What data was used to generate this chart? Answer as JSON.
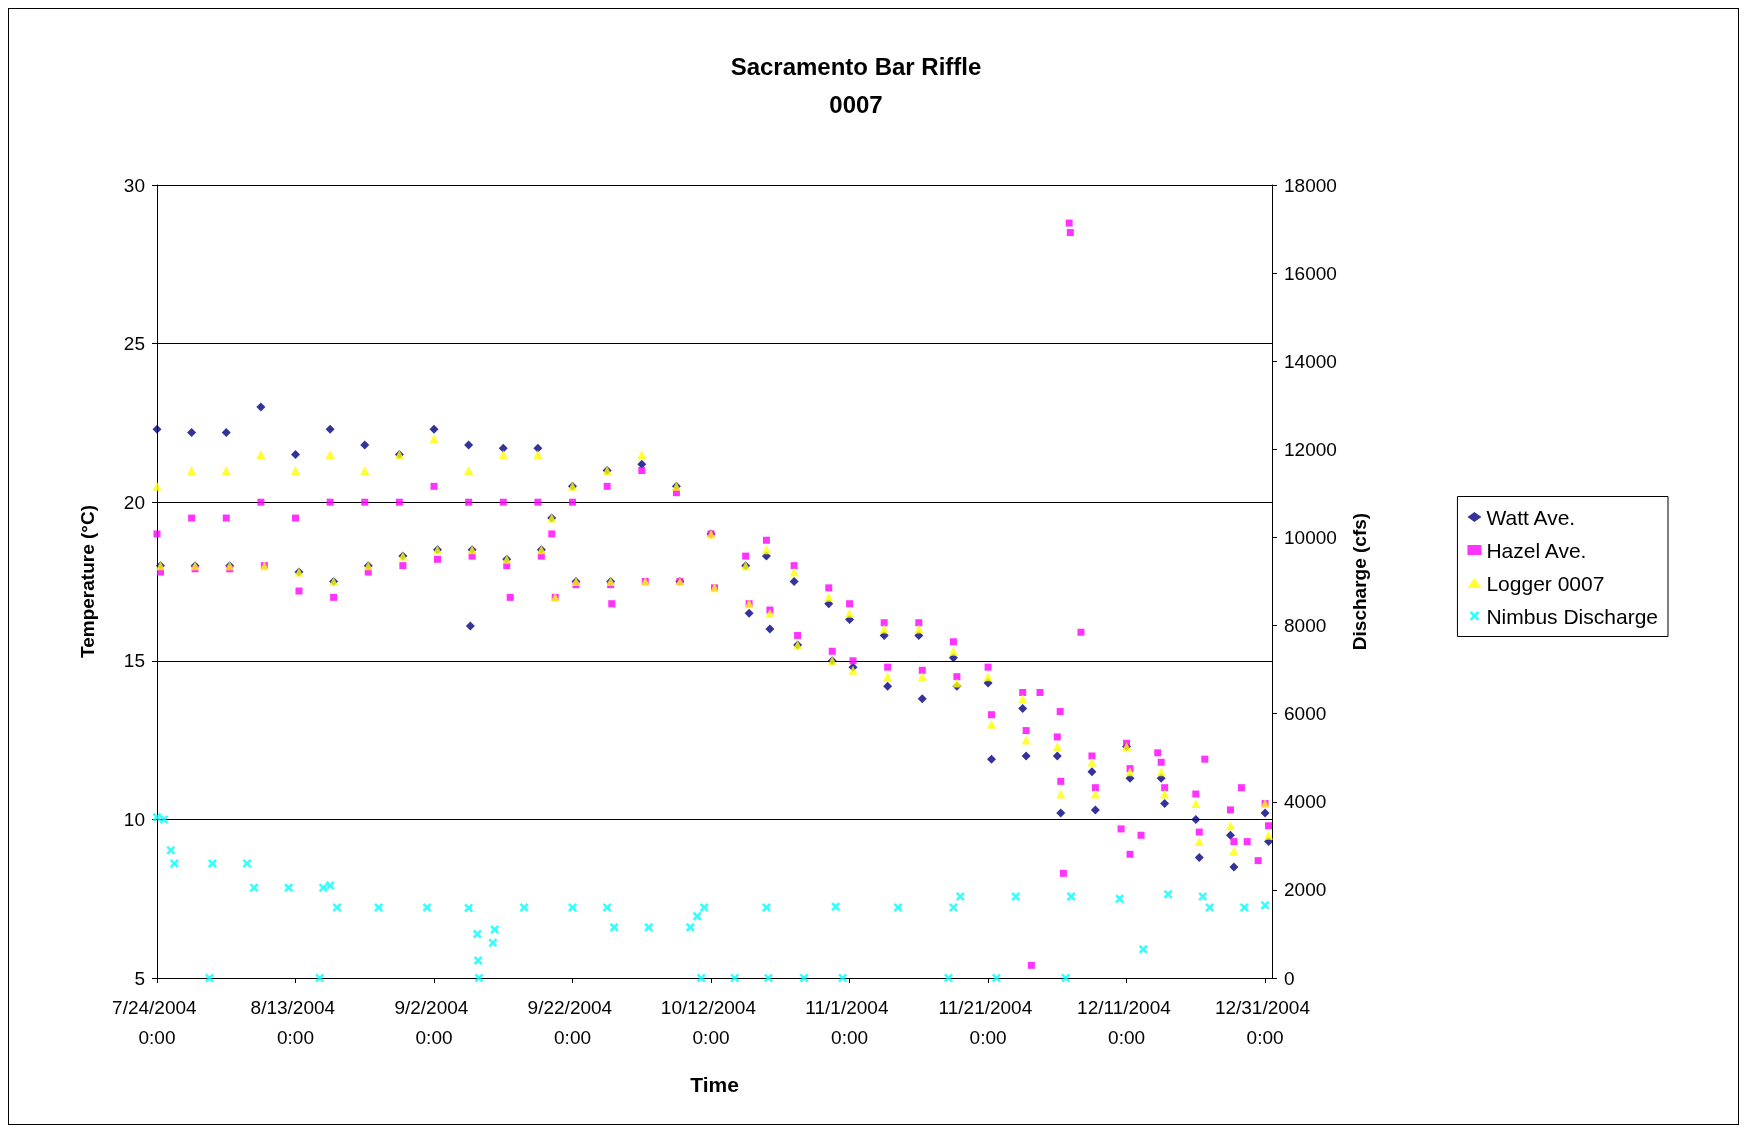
{
  "chart_data": {
    "type": "scatter",
    "title": "Sacramento Bar Riffle",
    "subtitle": "0007",
    "xlabel": "Time",
    "ylabel": "Temperature (°C)",
    "y2label": "Discharge (cfs)",
    "xlim": [
      "2004-07-24T00:00",
      "2005-01-01T00:00"
    ],
    "xticks": [
      {
        "value": "2004-07-24T00:00",
        "label": "7/24/2004 0:00"
      },
      {
        "value": "2004-08-13T00:00",
        "label": "8/13/2004 0:00"
      },
      {
        "value": "2004-09-02T00:00",
        "label": "9/2/2004 0:00"
      },
      {
        "value": "2004-09-22T00:00",
        "label": "9/22/2004 0:00"
      },
      {
        "value": "2004-10-12T00:00",
        "label": "10/12/2004 0:00"
      },
      {
        "value": "2004-11-01T00:00",
        "label": "11/1/2004 0:00"
      },
      {
        "value": "2004-11-21T00:00",
        "label": "11/21/2004 0:00"
      },
      {
        "value": "2004-12-11T00:00",
        "label": "12/11/2004 0:00"
      },
      {
        "value": "2004-12-31T00:00",
        "label": "12/31/2004 0:00"
      }
    ],
    "ylim": [
      5,
      30
    ],
    "yticks": [
      5,
      10,
      15,
      20,
      25,
      30
    ],
    "y2lim": [
      0,
      18000
    ],
    "y2ticks": [
      0,
      2000,
      4000,
      6000,
      8000,
      10000,
      12000,
      14000,
      16000,
      18000
    ],
    "grid": "y",
    "legend": "right",
    "series": [
      {
        "name": "Watt Ave.",
        "color": "#000080",
        "marker": "diamond",
        "x": [
          "2004-07-24T00:00",
          "2004-07-24T12:00",
          "2004-07-29T00:00",
          "2004-07-29T12:00",
          "2004-08-03T00:00",
          "2004-08-03T12:00",
          "2004-08-08T00:00",
          "2004-08-08T12:00",
          "2004-08-13T00:00",
          "2004-08-13T12:00",
          "2004-08-18T00:00",
          "2004-08-18T12:00",
          "2004-08-23T00:00",
          "2004-08-23T12:00",
          "2004-08-28T00:00",
          "2004-08-28T12:00",
          "2004-09-02T00:00",
          "2004-09-02T12:00",
          "2004-09-07T00:00",
          "2004-09-07T12:00",
          "2004-09-12T00:00",
          "2004-09-12T12:00",
          "2004-09-17T00:00",
          "2004-09-17T12:00",
          "2004-09-19T00:00",
          "2004-09-19T12:00",
          "2004-09-22T00:00",
          "2004-09-22T12:00",
          "2004-09-27T00:00",
          "2004-09-27T12:00",
          "2004-10-02T00:00",
          "2004-10-02T12:00",
          "2004-10-07T00:00",
          "2004-10-07T12:00",
          "2004-10-12T00:00",
          "2004-10-12T12:00",
          "2004-10-17T00:00",
          "2004-10-17T12:00",
          "2004-10-20T00:00",
          "2004-10-20T12:00",
          "2004-10-24T00:00",
          "2004-10-24T12:00",
          "2004-10-29T00:00",
          "2004-10-29T12:00",
          "2004-11-01T00:00",
          "2004-11-01T12:00",
          "2004-11-06T00:00",
          "2004-11-06T12:00",
          "2004-11-11T00:00",
          "2004-11-11T12:00",
          "2004-11-16T00:00",
          "2004-11-16T12:00",
          "2004-11-21T00:00",
          "2004-11-21T12:00",
          "2004-11-26T00:00",
          "2004-11-26T12:00",
          "2004-12-01T00:00",
          "2004-12-01T12:00",
          "2004-12-06T00:00",
          "2004-12-06T12:00",
          "2004-12-11T00:00",
          "2004-12-11T12:00",
          "2004-12-16T00:00",
          "2004-12-16T12:00",
          "2004-12-21T00:00",
          "2004-12-21T12:00",
          "2004-12-26T00:00",
          "2004-12-26T12:00",
          "2004-12-31T00:00",
          "2004-12-31T12:00",
          "2004-09-07T06:00"
        ],
        "values": [
          22.3,
          18,
          22.2,
          18,
          22.2,
          18,
          23,
          null,
          21.5,
          17.8,
          22.3,
          17.5,
          21.8,
          18,
          21.5,
          18.3,
          22.3,
          18.5,
          21.8,
          18.5,
          21.7,
          18.2,
          21.7,
          18.5,
          19.5,
          null,
          20.5,
          17.5,
          21,
          17.5,
          21.2,
          null,
          20.5,
          17.5,
          19,
          null,
          18,
          16.5,
          18.3,
          16,
          17.5,
          15.5,
          16.8,
          15,
          16.3,
          14.8,
          15.8,
          14.2,
          15.8,
          13.8,
          15.1,
          14.2,
          14.3,
          11.9,
          13.5,
          12,
          12,
          10.2,
          11.5,
          10.3,
          12.3,
          11.3,
          11.3,
          10.5,
          10,
          8.8,
          9.5,
          8.5,
          10.2,
          9.3,
          16.1
        ]
      },
      {
        "name": "Hazel Ave.",
        "color": "#ff00ff",
        "marker": "square",
        "x": [
          "2004-07-24T00:00",
          "2004-07-24T12:00",
          "2004-07-29T00:00",
          "2004-07-29T12:00",
          "2004-08-03T00:00",
          "2004-08-03T12:00",
          "2004-08-08T00:00",
          "2004-08-08T12:00",
          "2004-08-13T00:00",
          "2004-08-13T12:00",
          "2004-08-18T00:00",
          "2004-08-18T12:00",
          "2004-08-23T00:00",
          "2004-08-23T12:00",
          "2004-08-28T00:00",
          "2004-08-28T12:00",
          "2004-09-02T00:00",
          "2004-09-02T12:00",
          "2004-09-07T00:00",
          "2004-09-07T12:00",
          "2004-09-12T00:00",
          "2004-09-12T12:00",
          "2004-09-17T00:00",
          "2004-09-17T12:00",
          "2004-09-19T00:00",
          "2004-09-19T12:00",
          "2004-09-22T00:00",
          "2004-09-22T12:00",
          "2004-09-27T00:00",
          "2004-09-27T12:00",
          "2004-10-02T00:00",
          "2004-10-02T12:00",
          "2004-10-07T00:00",
          "2004-10-07T12:00",
          "2004-10-12T00:00",
          "2004-10-12T12:00",
          "2004-10-17T00:00",
          "2004-10-17T12:00",
          "2004-10-20T00:00",
          "2004-10-20T12:00",
          "2004-10-24T00:00",
          "2004-10-24T12:00",
          "2004-10-29T00:00",
          "2004-10-29T12:00",
          "2004-11-01T00:00",
          "2004-11-01T12:00",
          "2004-11-06T00:00",
          "2004-11-06T12:00",
          "2004-11-11T00:00",
          "2004-11-11T12:00",
          "2004-11-16T00:00",
          "2004-11-16T12:00",
          "2004-11-21T00:00",
          "2004-11-21T12:00",
          "2004-11-26T00:00",
          "2004-11-26T12:00",
          "2004-12-01T00:00",
          "2004-12-01T12:00",
          "2004-12-06T00:00",
          "2004-12-06T12:00",
          "2004-12-11T00:00",
          "2004-12-11T12:00",
          "2004-12-16T00:00",
          "2004-12-16T12:00",
          "2004-12-21T00:00",
          "2004-12-21T12:00",
          "2004-12-26T00:00",
          "2004-12-26T12:00",
          "2004-12-31T00:00",
          "2004-12-31T12:00",
          "2004-09-13T00:00",
          "2004-09-27T16:00",
          "2004-11-27T06:00",
          "2004-11-28T12:00",
          "2004-12-01T10:00",
          "2004-12-01T21:00",
          "2004-12-02T17:00",
          "2004-12-02T21:00",
          "2004-12-04T10:00",
          "2004-12-10T05:00",
          "2004-12-11T12:00",
          "2004-12-13T02:00",
          "2004-12-15T12:00",
          "2004-12-22T07:00",
          "2004-12-27T14:00",
          "2004-12-28T10:00",
          "2004-12-30T00:00"
        ],
        "values": [
          19,
          17.8,
          19.5,
          17.9,
          19.5,
          17.9,
          20,
          18,
          19.5,
          17.2,
          20,
          17,
          20,
          17.8,
          20,
          18,
          20.5,
          18.2,
          20,
          18.3,
          20,
          18,
          20,
          18.3,
          19,
          17,
          20,
          17.4,
          20.5,
          17.4,
          21,
          17.5,
          20.3,
          17.5,
          19,
          17.3,
          18.3,
          16.8,
          18.8,
          16.6,
          18,
          15.8,
          17.3,
          15.3,
          16.8,
          15,
          16.2,
          14.8,
          16.2,
          14.7,
          15.6,
          14.5,
          14.8,
          13.3,
          14,
          12.8,
          12.6,
          11.2,
          12,
          11,
          12.4,
          11.6,
          11.8,
          11,
          10.8,
          9.6,
          10.3,
          9.3,
          10.5,
          9.8,
          17,
          16.8,
          5.4,
          14,
          13.4,
          8.3,
          28.8,
          28.5,
          15.9,
          9.7,
          8.9,
          9.5,
          12.1,
          11.9,
          11,
          9.3,
          8.7
        ]
      },
      {
        "name": "Logger 0007",
        "color": "#ffff00",
        "marker": "triangle",
        "x": [
          "2004-07-24T00:00",
          "2004-07-24T12:00",
          "2004-07-29T00:00",
          "2004-07-29T12:00",
          "2004-08-03T00:00",
          "2004-08-03T12:00",
          "2004-08-08T00:00",
          "2004-08-08T12:00",
          "2004-08-13T00:00",
          "2004-08-13T12:00",
          "2004-08-18T00:00",
          "2004-08-18T12:00",
          "2004-08-23T00:00",
          "2004-08-23T12:00",
          "2004-08-28T00:00",
          "2004-08-28T12:00",
          "2004-09-02T00:00",
          "2004-09-02T12:00",
          "2004-09-07T00:00",
          "2004-09-07T12:00",
          "2004-09-12T00:00",
          "2004-09-12T12:00",
          "2004-09-17T00:00",
          "2004-09-17T12:00",
          "2004-09-19T00:00",
          "2004-09-19T12:00",
          "2004-09-22T00:00",
          "2004-09-22T12:00",
          "2004-09-27T00:00",
          "2004-09-27T12:00",
          "2004-10-02T00:00",
          "2004-10-02T12:00",
          "2004-10-07T00:00",
          "2004-10-07T12:00",
          "2004-10-12T00:00",
          "2004-10-12T12:00",
          "2004-10-17T00:00",
          "2004-10-17T12:00",
          "2004-10-20T00:00",
          "2004-10-20T12:00",
          "2004-10-24T00:00",
          "2004-10-24T12:00",
          "2004-10-29T00:00",
          "2004-10-29T12:00",
          "2004-11-01T00:00",
          "2004-11-01T12:00",
          "2004-11-06T00:00",
          "2004-11-06T12:00",
          "2004-11-11T00:00",
          "2004-11-11T12:00",
          "2004-11-16T00:00",
          "2004-11-16T12:00",
          "2004-11-21T00:00",
          "2004-11-21T12:00",
          "2004-11-26T00:00",
          "2004-11-26T12:00",
          "2004-12-01T00:00",
          "2004-12-01T12:00",
          "2004-12-06T00:00",
          "2004-12-06T12:00",
          "2004-12-11T00:00",
          "2004-12-11T12:00",
          "2004-12-16T00:00",
          "2004-12-16T12:00",
          "2004-12-21T00:00",
          "2004-12-21T12:00",
          "2004-12-26T00:00",
          "2004-12-26T12:00",
          "2004-12-31T00:00",
          "2004-12-31T12:00"
        ],
        "values": [
          20.5,
          18,
          21,
          18,
          21,
          18,
          21.5,
          18,
          21,
          17.8,
          21.5,
          17.5,
          21,
          18,
          21.5,
          18.3,
          22,
          18.5,
          21,
          18.5,
          21.5,
          18.2,
          21.5,
          18.5,
          19.5,
          17,
          20.5,
          17.5,
          21,
          17.5,
          21.5,
          17.5,
          20.5,
          17.5,
          19,
          17.3,
          18,
          16.8,
          18.5,
          16.5,
          17.8,
          15.5,
          17,
          15,
          16.5,
          14.7,
          16,
          14.5,
          16,
          14.5,
          15.3,
          14.3,
          14.5,
          13,
          13.8,
          12.5,
          12.3,
          10.8,
          11.8,
          10.8,
          12.3,
          11.5,
          11.5,
          10.8,
          10.5,
          9.3,
          9.8,
          9,
          10.5,
          9.5
        ]
      },
      {
        "name": "Nimbus Discharge",
        "color": "#00ffff",
        "marker": "cross",
        "axis": "y2",
        "x": [
          "2004-07-24T00:00",
          "2004-07-25T00:00",
          "2004-07-26T00:00",
          "2004-07-26T12:00",
          "2004-08-01T00:00",
          "2004-08-06T00:00",
          "2004-08-07T00:00",
          "2004-08-12T00:00",
          "2004-08-17T00:00",
          "2004-08-18T00:00",
          "2004-08-19T00:00",
          "2004-08-25T00:00",
          "2004-09-01T00:00",
          "2004-09-07T00:00",
          "2004-09-15T00:00",
          "2004-09-22T00:00",
          "2004-09-27T00:00",
          "2004-09-28T00:00",
          "2004-10-03T00:00",
          "2004-10-09T00:00",
          "2004-10-10T00:00",
          "2004-10-11T00:00",
          "2004-10-20T00:00",
          "2004-10-30T00:00",
          "2004-11-08T00:00",
          "2004-11-16T00:00",
          "2004-11-17T00:00",
          "2004-11-25T00:00",
          "2004-12-03T00:00",
          "2004-12-10T00:00",
          "2004-12-17T00:00",
          "2004-12-22T00:00",
          "2004-12-23T00:00",
          "2004-12-28T00:00",
          "2004-12-31T00:00",
          "2004-07-31T14:00",
          "2004-08-16T12:00",
          "2004-09-08T12:00",
          "2004-10-10T14:00",
          "2004-10-15T10:00",
          "2004-10-20T07:00",
          "2004-10-25T10:00",
          "2004-10-31T00:00",
          "2004-11-15T07:00",
          "2004-11-22T05:00",
          "2004-12-02T05:00",
          "2004-09-08T06:00",
          "2004-09-08T09:00",
          "2004-09-10T12:00",
          "2004-09-10T18:00",
          "2004-12-13T10:00"
        ],
        "values": [
          3650,
          3600,
          2900,
          2600,
          2600,
          2600,
          2050,
          2050,
          2050,
          2100,
          1600,
          1600,
          1600,
          1590,
          1600,
          1600,
          1600,
          1150,
          1150,
          1150,
          1400,
          1600,
          1600,
          1620,
          1600,
          1600,
          1850,
          1850,
          1850,
          1800,
          1900,
          1850,
          1600,
          1600,
          1650,
          0,
          0,
          0,
          0,
          0,
          0,
          0,
          0,
          0,
          0,
          0,
          1000,
          400,
          800,
          1100,
          650
        ]
      }
    ]
  }
}
